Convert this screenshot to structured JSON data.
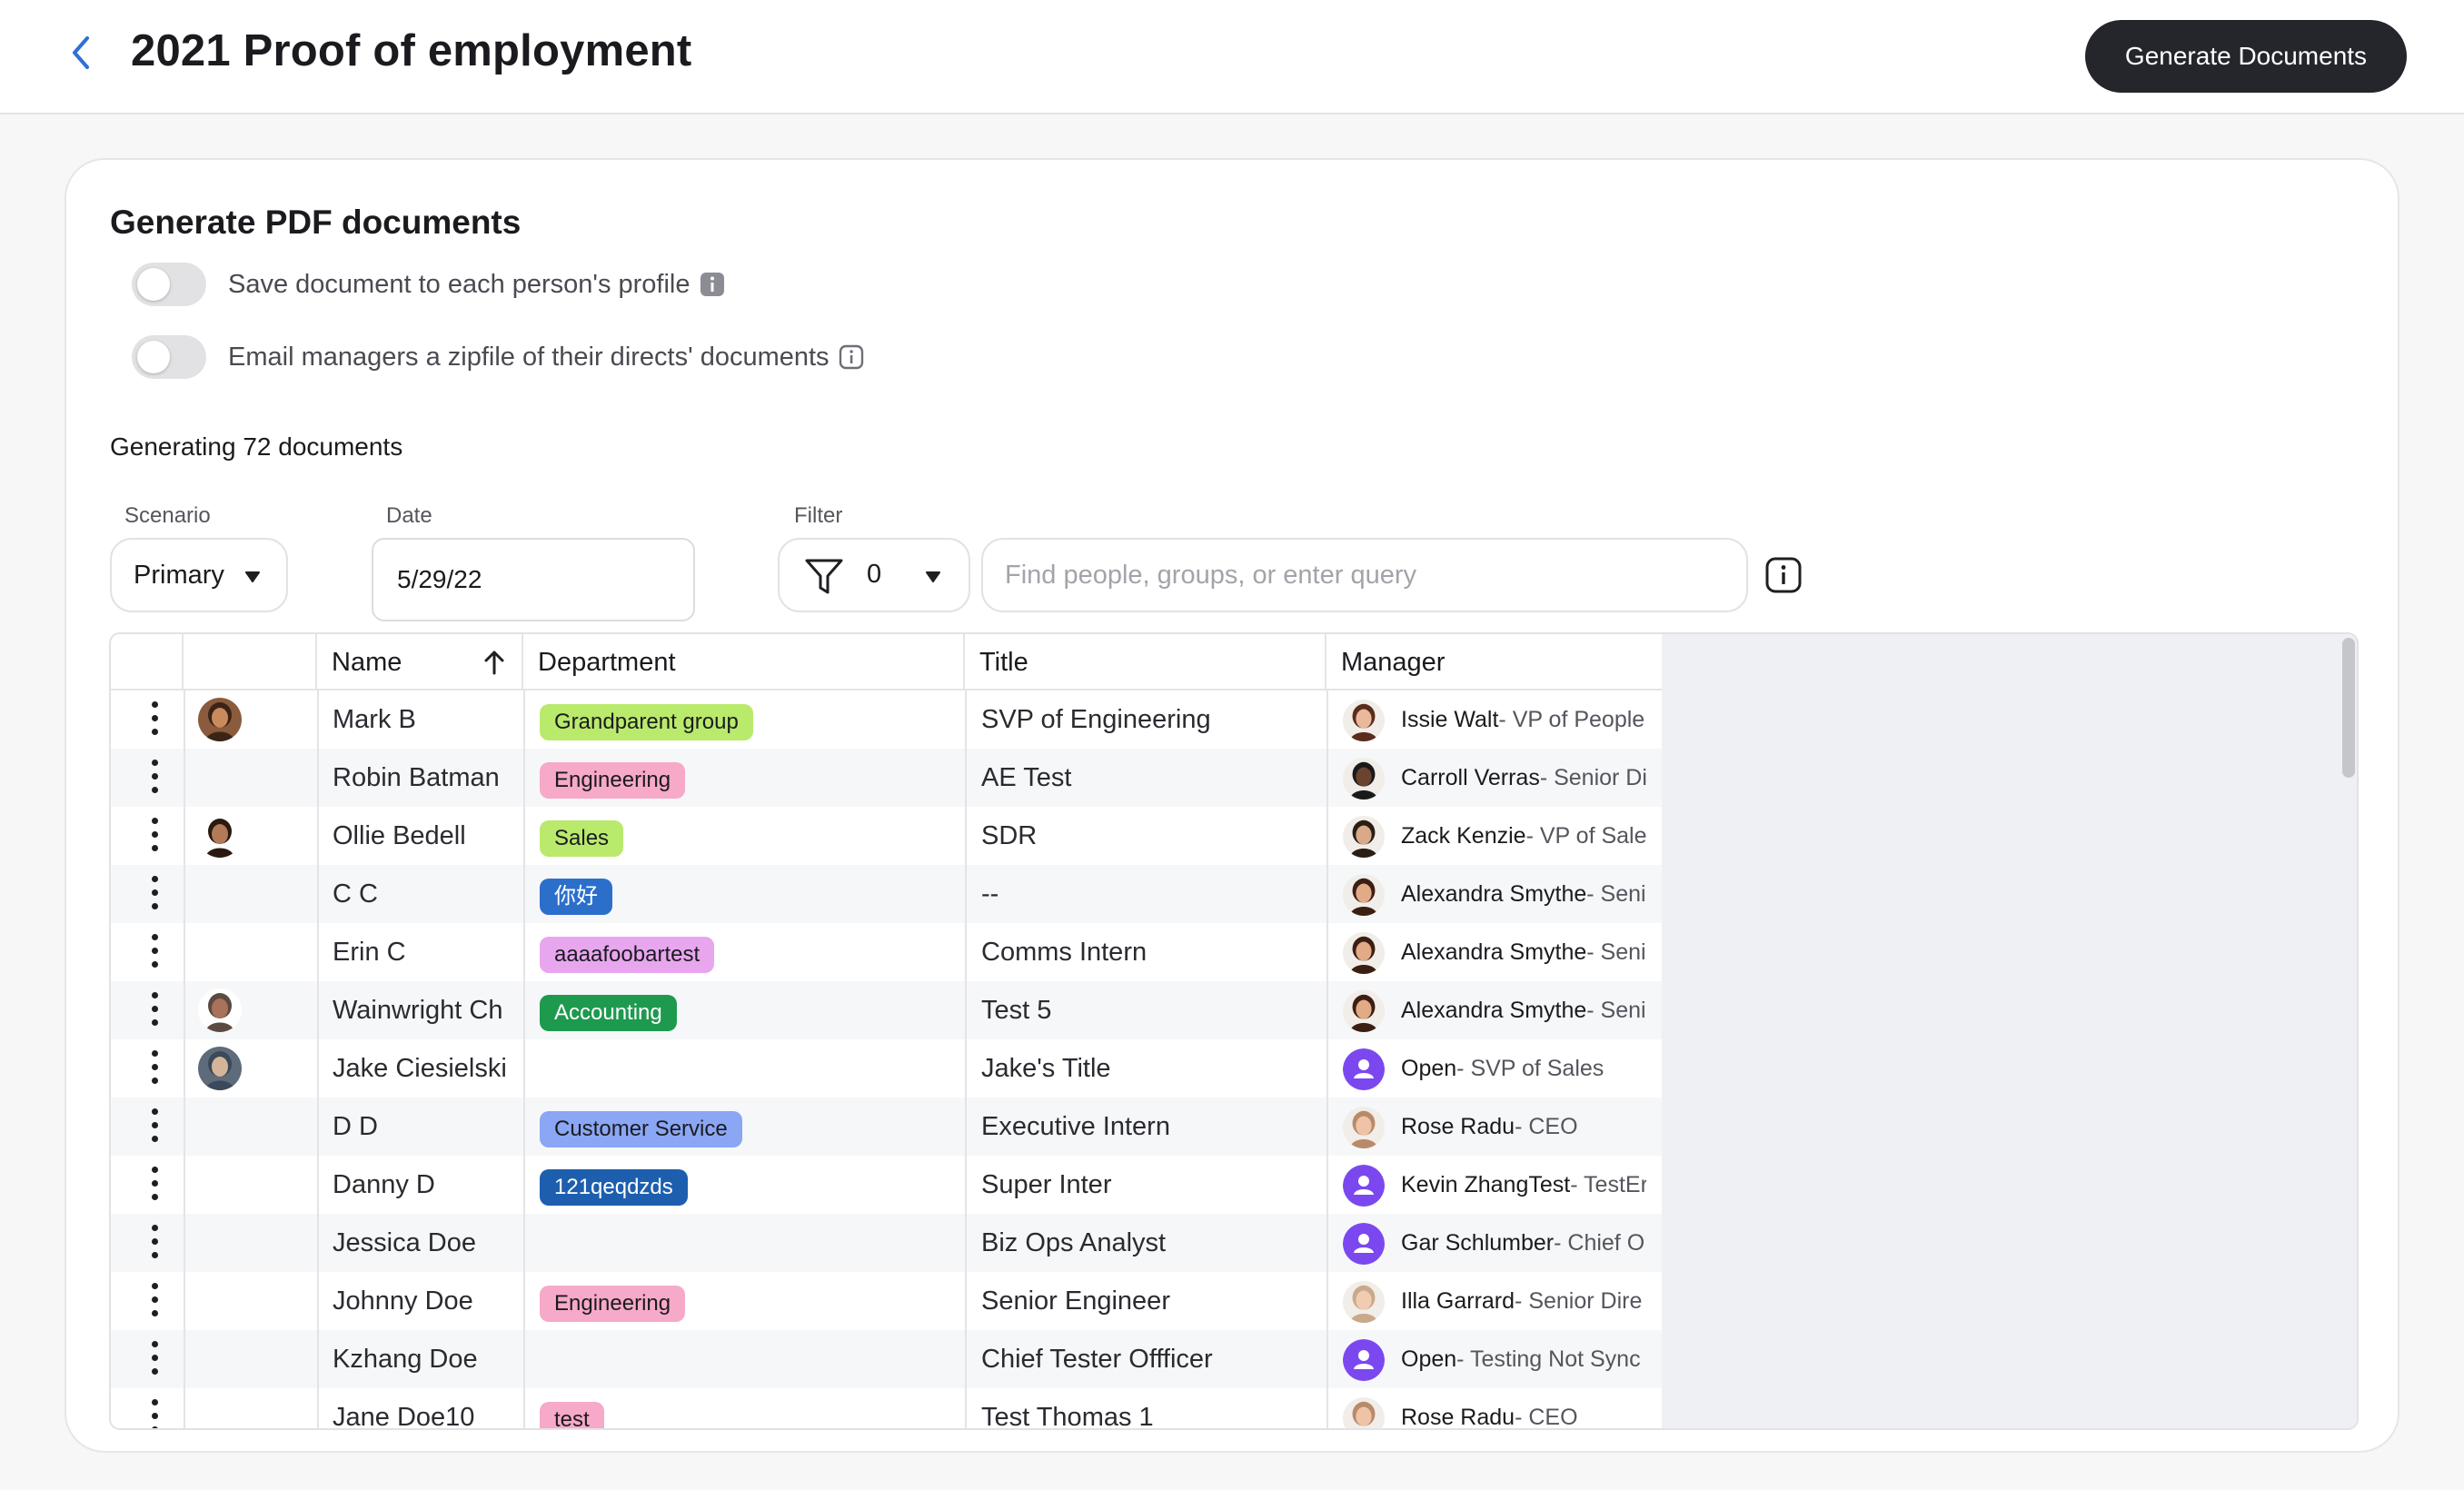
{
  "header": {
    "title": "2021 Proof of employment",
    "generate_button": "Generate Documents"
  },
  "card": {
    "section_title": "Generate PDF documents",
    "toggle_save_label": "Save document to each person's profile",
    "toggle_email_label": "Email managers a zipfile of their directs' documents",
    "generating_text": "Generating 72 documents"
  },
  "controls": {
    "scenario_label": "Scenario",
    "scenario_value": "Primary",
    "date_label": "Date",
    "date_value": "5/29/22",
    "filter_label": "Filter",
    "filter_count": "0",
    "search_placeholder": "Find people, groups, or enter query"
  },
  "table": {
    "columns": {
      "name": "Name",
      "department": "Department",
      "title": "Title",
      "manager": "Manager"
    },
    "rows": [
      {
        "name": "Mark B",
        "department": "Grandparent group",
        "title": "SVP of Engineering",
        "manager_name": "Issie Walt",
        "manager_title": " - VP of People"
      },
      {
        "name": "Robin Batman",
        "department": "Engineering",
        "title": "AE Test",
        "manager_name": "Carroll Verras",
        "manager_title": " - Senior Di"
      },
      {
        "name": "Ollie Bedell",
        "department": "Sales",
        "title": "SDR",
        "manager_name": "Zack Kenzie",
        "manager_title": " - VP of Sales"
      },
      {
        "name": "C C",
        "department": "你好",
        "title": "--",
        "manager_name": "Alexandra Smythe",
        "manager_title": " - Seni"
      },
      {
        "name": "Erin C",
        "department": "aaaafoobartest",
        "title": "Comms Intern",
        "manager_name": "Alexandra Smythe",
        "manager_title": " - Seni"
      },
      {
        "name": "Wainwright Ch",
        "department": "Accounting",
        "title": "Test 5",
        "manager_name": "Alexandra Smythe",
        "manager_title": " - Seni"
      },
      {
        "name": "Jake Ciesielski",
        "department": "",
        "title": "Jake's Title",
        "manager_name": "Open",
        "manager_title": " - SVP of Sales"
      },
      {
        "name": "D D",
        "department": "Customer Service",
        "title": "Executive Intern",
        "manager_name": "Rose Radu",
        "manager_title": " - CEO"
      },
      {
        "name": "Danny D",
        "department": "121qeqdzds",
        "title": "Super Inter",
        "manager_name": "Kevin ZhangTest",
        "manager_title": " - TestEr"
      },
      {
        "name": "Jessica Doe",
        "department": "",
        "title": "Biz Ops Analyst",
        "manager_name": "Gar Schlumber",
        "manager_title": " - Chief O"
      },
      {
        "name": "Johnny Doe",
        "department": "Engineering",
        "title": "Senior Engineer",
        "manager_name": "Illa Garrard",
        "manager_title": " - Senior Dire"
      },
      {
        "name": "Kzhang Doe",
        "department": "",
        "title": "Chief Tester Offficer",
        "manager_name": "Open",
        "manager_title": " - Testing Not Sync"
      },
      {
        "name": "Jane Doe10",
        "department": "test",
        "title": "Test Thomas 1",
        "manager_name": "Rose Radu",
        "manager_title": " - CEO"
      }
    ]
  },
  "colors": {
    "tag_lime": "#b9ea6c",
    "tag_pink": "#f6a9c8",
    "tag_blue": "#2c6fcb",
    "tag_violet": "#e8a6ef",
    "tag_green": "#1e9a4f",
    "tag_periwinkle": "#8aa6f4",
    "tag_navy": "#1d5fae",
    "placeholder_avatar": "#7b48f0"
  }
}
